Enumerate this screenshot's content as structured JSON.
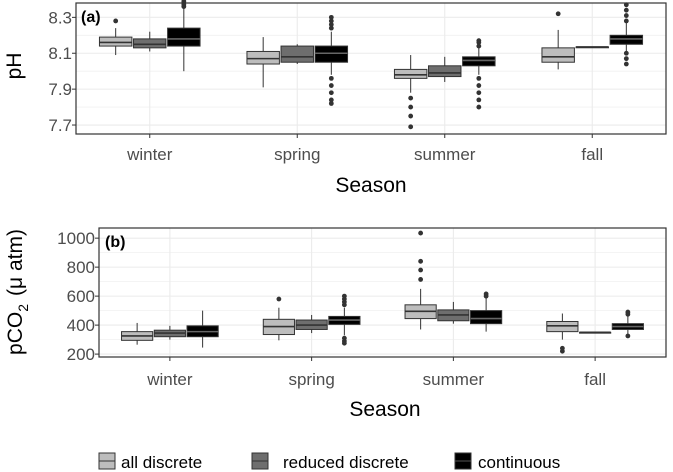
{
  "chart_data": [
    {
      "type": "box",
      "panel_label": "(a)",
      "xlabel": "Season",
      "ylabel": "pH",
      "ylim": [
        7.65,
        8.38
      ],
      "yticks": [
        7.7,
        7.9,
        8.1,
        8.3
      ],
      "ytick_labels": [
        "7.7",
        "7.9",
        "8.1",
        "8.3"
      ],
      "categories": [
        "winter",
        "spring",
        "summer",
        "fall"
      ],
      "series": [
        {
          "name": "all discrete",
          "boxes": [
            {
              "min": 8.09,
              "q1": 8.14,
              "median": 8.16,
              "q3": 8.19,
              "max": 8.24,
              "outliers": [
                8.28
              ]
            },
            {
              "min": 7.91,
              "q1": 8.04,
              "median": 8.07,
              "q3": 8.11,
              "max": 8.19,
              "outliers": []
            },
            {
              "min": 7.88,
              "q1": 7.96,
              "median": 7.98,
              "q3": 8.01,
              "max": 8.09,
              "outliers": [
                7.85,
                7.8,
                7.75,
                7.69
              ]
            },
            {
              "min": 8.01,
              "q1": 8.05,
              "median": 8.08,
              "q3": 8.13,
              "max": 8.23,
              "outliers": [
                8.32
              ]
            }
          ]
        },
        {
          "name": "reduced discrete",
          "boxes": [
            {
              "min": 8.11,
              "q1": 8.13,
              "median": 8.15,
              "q3": 8.18,
              "max": 8.22,
              "outliers": []
            },
            {
              "min": 8.04,
              "q1": 8.05,
              "median": 8.08,
              "q3": 8.14,
              "max": 8.15,
              "outliers": []
            },
            {
              "min": 7.94,
              "q1": 7.97,
              "median": 7.99,
              "q3": 8.03,
              "max": 8.08,
              "outliers": []
            },
            {
              "min": 8.135,
              "q1": 8.135,
              "median": 8.135,
              "q3": 8.135,
              "max": 8.135,
              "outliers": []
            }
          ]
        },
        {
          "name": "continuous",
          "boxes": [
            {
              "min": 8.0,
              "q1": 8.14,
              "median": 8.18,
              "q3": 8.24,
              "max": 8.35,
              "outliers": [
                8.36,
                8.37,
                8.38,
                8.39
              ]
            },
            {
              "min": 7.98,
              "q1": 8.05,
              "median": 8.1,
              "q3": 8.14,
              "max": 8.22,
              "outliers": [
                8.24,
                8.26,
                8.28,
                8.3,
                7.96,
                7.92,
                7.88,
                7.84,
                7.82
              ]
            },
            {
              "min": 7.98,
              "q1": 8.03,
              "median": 8.06,
              "q3": 8.08,
              "max": 8.13,
              "outliers": [
                8.14,
                8.16,
                8.17,
                7.96,
                7.92,
                7.88,
                7.84,
                7.8
              ]
            },
            {
              "min": 8.11,
              "q1": 8.15,
              "median": 8.18,
              "q3": 8.2,
              "max": 8.27,
              "outliers": [
                8.28,
                8.31,
                8.34,
                8.37,
                8.1,
                8.07,
                8.04
              ]
            }
          ]
        }
      ]
    },
    {
      "type": "box",
      "panel_label": "(b)",
      "xlabel": "Season",
      "ylabel": "pCO",
      "ylabel_sub": "2",
      "ylabel_unit": "(μ atm)",
      "ylim": [
        180,
        1070
      ],
      "yticks": [
        200,
        400,
        600,
        800,
        1000
      ],
      "ytick_labels": [
        "200",
        "400",
        "600",
        "800",
        "1000"
      ],
      "categories": [
        "winter",
        "spring",
        "summer",
        "fall"
      ],
      "series": [
        {
          "name": "all discrete",
          "boxes": [
            {
              "min": 265,
              "q1": 295,
              "median": 325,
              "q3": 355,
              "max": 415,
              "outliers": []
            },
            {
              "min": 295,
              "q1": 335,
              "median": 390,
              "q3": 440,
              "max": 520,
              "outliers": [
                580
              ]
            },
            {
              "min": 370,
              "q1": 445,
              "median": 495,
              "q3": 540,
              "max": 650,
              "outliers": [
                715,
                780,
                840,
                1035
              ]
            },
            {
              "min": 300,
              "q1": 355,
              "median": 395,
              "q3": 425,
              "max": 480,
              "outliers": [
                240,
                220
              ]
            }
          ]
        },
        {
          "name": "reduced discrete",
          "boxes": [
            {
              "min": 300,
              "q1": 320,
              "median": 345,
              "q3": 365,
              "max": 395,
              "outliers": []
            },
            {
              "min": 345,
              "q1": 370,
              "median": 400,
              "q3": 435,
              "max": 470,
              "outliers": []
            },
            {
              "min": 410,
              "q1": 430,
              "median": 470,
              "q3": 505,
              "max": 560,
              "outliers": []
            },
            {
              "min": 350,
              "q1": 350,
              "median": 350,
              "q3": 350,
              "max": 350,
              "outliers": []
            }
          ]
        },
        {
          "name": "continuous",
          "boxes": [
            {
              "min": 245,
              "q1": 320,
              "median": 355,
              "q3": 395,
              "max": 500,
              "outliers": []
            },
            {
              "min": 330,
              "q1": 405,
              "median": 435,
              "q3": 460,
              "max": 520,
              "outliers": [
                540,
                560,
                580,
                600,
                310,
                290,
                275
              ]
            },
            {
              "min": 355,
              "q1": 410,
              "median": 445,
              "q3": 500,
              "max": 590,
              "outliers": [
                600,
                615
              ]
            },
            {
              "min": 335,
              "q1": 370,
              "median": 390,
              "q3": 410,
              "max": 460,
              "outliers": [
                475,
                490,
                325
              ]
            }
          ]
        }
      ]
    }
  ],
  "legend": {
    "position": "bottom",
    "items": [
      {
        "label": "all discrete",
        "color": "#bdbdbd"
      },
      {
        "label": "reduced discrete",
        "color": "#6e6e6e"
      },
      {
        "label": "continuous",
        "color": "#000000"
      }
    ]
  },
  "colors": {
    "all discrete": "#bdbdbd",
    "reduced discrete": "#6e6e6e",
    "continuous": "#000000"
  }
}
